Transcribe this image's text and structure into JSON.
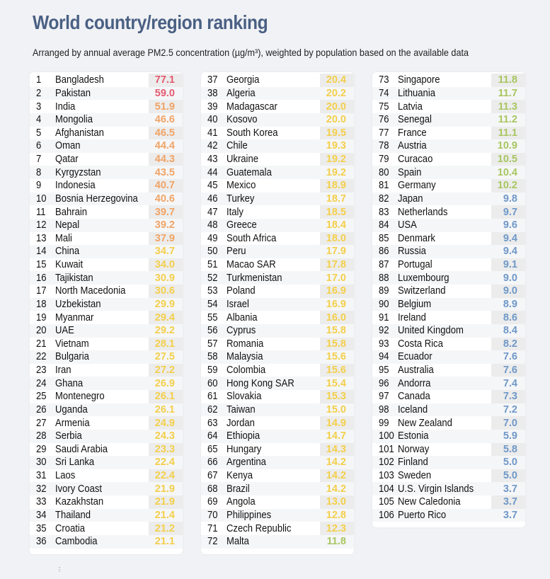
{
  "title": "World country/region ranking",
  "subtitle": "Arranged by annual average PM2.5 concentration (µg/m³), weighted by population based on the available data",
  "colors": {
    "red": "#e35a6e",
    "orange": "#f0a466",
    "yellow": "#f3cf4a",
    "green": "#a8c660",
    "blue": "#6f98c8"
  },
  "columns": [
    [
      [
        1,
        "Bangladesh",
        "77.1"
      ],
      [
        2,
        "Pakistan",
        "59.0"
      ],
      [
        3,
        "India",
        "51.9"
      ],
      [
        4,
        "Mongolia",
        "46.6"
      ],
      [
        5,
        "Afghanistan",
        "46.5"
      ],
      [
        6,
        "Oman",
        "44.4"
      ],
      [
        7,
        "Qatar",
        "44.3"
      ],
      [
        8,
        "Kyrgyzstan",
        "43.5"
      ],
      [
        9,
        "Indonesia",
        "40.7"
      ],
      [
        10,
        "Bosnia Herzegovina",
        "40.6"
      ],
      [
        11,
        "Bahrain",
        "39.7"
      ],
      [
        12,
        "Nepal",
        "39.2"
      ],
      [
        13,
        "Mali",
        "37.9"
      ],
      [
        14,
        "China",
        "34.7"
      ],
      [
        15,
        "Kuwait",
        "34.0"
      ],
      [
        16,
        "Tajikistan",
        "30.9"
      ],
      [
        17,
        "North Macedonia",
        "30.6"
      ],
      [
        18,
        "Uzbekistan",
        "29.9"
      ],
      [
        19,
        "Myanmar",
        "29.4"
      ],
      [
        20,
        "UAE",
        "29.2"
      ],
      [
        21,
        "Vietnam",
        "28.1"
      ],
      [
        22,
        "Bulgaria",
        "27.5"
      ],
      [
        23,
        "Iran",
        "27.2"
      ],
      [
        24,
        "Ghana",
        "26.9"
      ],
      [
        25,
        "Montenegro",
        "26.1"
      ],
      [
        26,
        "Uganda",
        "26.1"
      ],
      [
        27,
        "Armenia",
        "24.9"
      ],
      [
        28,
        "Serbia",
        "24.3"
      ],
      [
        29,
        "Saudi Arabia",
        "23.3"
      ],
      [
        30,
        "Sri Lanka",
        "22.4"
      ],
      [
        31,
        "Laos",
        "22.4"
      ],
      [
        32,
        "Ivory Coast",
        "21.9"
      ],
      [
        33,
        "Kazakhstan",
        "21.9"
      ],
      [
        34,
        "Thailand",
        "21.4"
      ],
      [
        35,
        "Croatia",
        "21.2"
      ],
      [
        36,
        "Cambodia",
        "21.1"
      ]
    ],
    [
      [
        37,
        "Georgia",
        "20.4"
      ],
      [
        38,
        "Algeria",
        "20.2"
      ],
      [
        39,
        "Madagascar",
        "20.0"
      ],
      [
        40,
        "Kosovo",
        "20.0"
      ],
      [
        41,
        "South Korea",
        "19.5"
      ],
      [
        42,
        "Chile",
        "19.3"
      ],
      [
        43,
        "Ukraine",
        "19.2"
      ],
      [
        44,
        "Guatemala",
        "19.2"
      ],
      [
        45,
        "Mexico",
        "18.9"
      ],
      [
        46,
        "Turkey",
        "18.7"
      ],
      [
        47,
        "Italy",
        "18.5"
      ],
      [
        48,
        "Greece",
        "18.4"
      ],
      [
        49,
        "South Africa",
        "18.0"
      ],
      [
        50,
        "Peru",
        "17.9"
      ],
      [
        51,
        "Macao SAR",
        "17.8"
      ],
      [
        52,
        "Turkmenistan",
        "17.0"
      ],
      [
        53,
        "Poland",
        "16.9"
      ],
      [
        54,
        "Israel",
        "16.9"
      ],
      [
        55,
        "Albania",
        "16.0"
      ],
      [
        56,
        "Cyprus",
        "15.8"
      ],
      [
        57,
        "Romania",
        "15.8"
      ],
      [
        58,
        "Malaysia",
        "15.6"
      ],
      [
        59,
        "Colombia",
        "15.6"
      ],
      [
        60,
        "Hong Kong SAR",
        "15.4"
      ],
      [
        61,
        "Slovakia",
        "15.3"
      ],
      [
        62,
        "Taiwan",
        "15.0"
      ],
      [
        63,
        "Jordan",
        "14.9"
      ],
      [
        64,
        "Ethiopia",
        "14.7"
      ],
      [
        65,
        "Hungary",
        "14.3"
      ],
      [
        66,
        "Argentina",
        "14.2"
      ],
      [
        67,
        "Kenya",
        "14.2"
      ],
      [
        68,
        "Brazil",
        "14.2"
      ],
      [
        69,
        "Angola",
        "13.0"
      ],
      [
        70,
        "Philippines",
        "12.8"
      ],
      [
        71,
        "Czech Republic",
        "12.3"
      ],
      [
        72,
        "Malta",
        "11.8"
      ]
    ],
    [
      [
        73,
        "Singapore",
        "11.8"
      ],
      [
        74,
        "Lithuania",
        "11.7"
      ],
      [
        75,
        "Latvia",
        "11.3"
      ],
      [
        76,
        "Senegal",
        "11.2"
      ],
      [
        77,
        "France",
        "11.1"
      ],
      [
        78,
        "Austria",
        "10.9"
      ],
      [
        79,
        "Curacao",
        "10.5"
      ],
      [
        80,
        "Spain",
        "10.4"
      ],
      [
        81,
        "Germany",
        "10.2"
      ],
      [
        82,
        "Japan",
        "9.8"
      ],
      [
        83,
        "Netherlands",
        "9.7"
      ],
      [
        84,
        "USA",
        "9.6"
      ],
      [
        85,
        "Denmark",
        "9.4"
      ],
      [
        86,
        "Russia",
        "9.4"
      ],
      [
        87,
        "Portugal",
        "9.1"
      ],
      [
        88,
        "Luxembourg",
        "9.0"
      ],
      [
        89,
        "Switzerland",
        "9.0"
      ],
      [
        90,
        "Belgium",
        "8.9"
      ],
      [
        91,
        "Ireland",
        "8.6"
      ],
      [
        92,
        "United Kingdom",
        "8.4"
      ],
      [
        93,
        "Costa Rica",
        "8.2"
      ],
      [
        94,
        "Ecuador",
        "7.6"
      ],
      [
        95,
        "Australia",
        "7.6"
      ],
      [
        96,
        "Andorra",
        "7.4"
      ],
      [
        97,
        "Canada",
        "7.3"
      ],
      [
        98,
        "Iceland",
        "7.2"
      ],
      [
        99,
        "New Zealand",
        "7.0"
      ],
      [
        100,
        "Estonia",
        "5.9"
      ],
      [
        101,
        "Norway",
        "5.8"
      ],
      [
        102,
        "Finland",
        "5.0"
      ],
      [
        103,
        "Sweden",
        "5.0"
      ],
      [
        104,
        "U.S. Virgin Islands",
        "3.7"
      ],
      [
        105,
        "New Caledonia",
        "3.7"
      ],
      [
        106,
        "Puerto Rico",
        "3.7"
      ]
    ]
  ]
}
